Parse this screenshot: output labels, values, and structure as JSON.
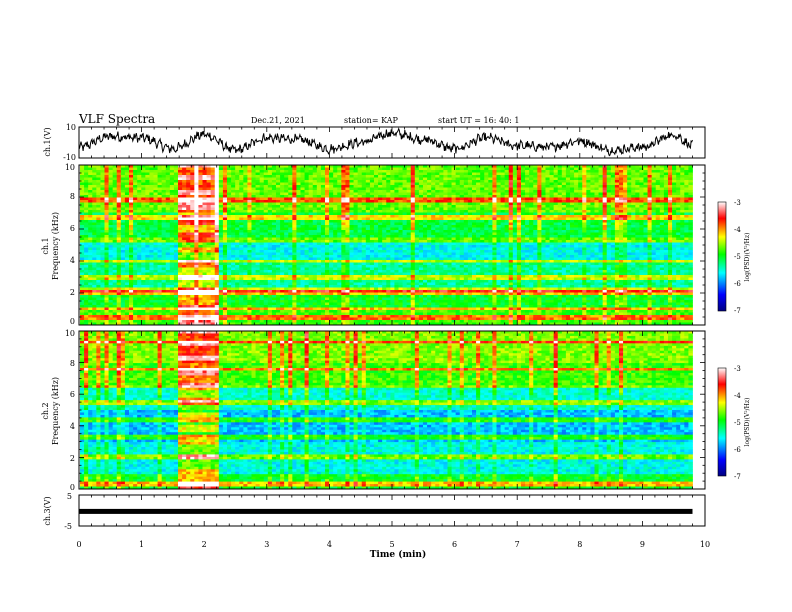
{
  "header": {
    "title": "VLF Spectra",
    "date": "Dec.21, 2021",
    "station": "station= KAP",
    "start_ut": "start  UT =   16: 40: 1"
  },
  "colorbar": {
    "label": "log(PSD)(V²/Hz)",
    "ticks": [
      "-3",
      "-4",
      "-5",
      "-6",
      "-7"
    ],
    "colors": [
      "#000080",
      "#0000ff",
      "#00ffff",
      "#00ff00",
      "#ffff00",
      "#ff0000",
      "#ffffff"
    ]
  },
  "chart_data": [
    {
      "type": "line",
      "panel": "ch1-waveform",
      "ylabel": "ch.1(V)",
      "ylim": [
        -10,
        10
      ],
      "yticks": [
        "10",
        "-10"
      ],
      "xlim": [
        0,
        10
      ],
      "trend_x": [
        0,
        0.5,
        1,
        1.5,
        2,
        2.5,
        3,
        3.5,
        4,
        4.5,
        5,
        5.5,
        6,
        6.5,
        7,
        7.5,
        8,
        8.5,
        9,
        9.5,
        9.8
      ],
      "trend_y": [
        -3,
        4,
        3,
        -4,
        5,
        -5,
        3,
        2,
        -4,
        0,
        6,
        2,
        -4,
        3,
        -2,
        -3,
        1,
        -5,
        -3,
        5,
        -2
      ]
    },
    {
      "type": "heatmap",
      "panel": "ch1-spectrogram",
      "ylabel": "ch.1\nFrequency (kHz)",
      "ylim": [
        0,
        10
      ],
      "yticks": [
        "0",
        "2",
        "4",
        "6",
        "8",
        "10"
      ],
      "xlim": [
        0,
        9.8
      ],
      "strong_band": {
        "x_start": 1.6,
        "x_end": 2.2
      },
      "bright_lines_khz": [
        0.5,
        1.0,
        2.0,
        2.2,
        3.0,
        4.0,
        5.3,
        6.7,
        7.8
      ]
    },
    {
      "type": "heatmap",
      "panel": "ch2-spectrogram",
      "ylabel": "ch.2\nFrequency (kHz)",
      "ylim": [
        0,
        10
      ],
      "yticks": [
        "0",
        "2",
        "4",
        "6",
        "8",
        "10"
      ],
      "xlim": [
        0,
        9.8
      ],
      "strong_band": {
        "x_start": 1.6,
        "x_end": 2.2
      },
      "bright_lines_khz": [
        0.3,
        2.0,
        3.3,
        4.4,
        5.5,
        6.5,
        7.6,
        9.3
      ]
    },
    {
      "type": "line",
      "panel": "ch3-waveform",
      "ylabel": "ch.3(V)",
      "ylim": [
        -5,
        5
      ],
      "yticks": [
        "5",
        "-5"
      ],
      "xlim": [
        0,
        10
      ],
      "level": -0.3
    }
  ],
  "xaxis": {
    "label": "Time (min)",
    "ticks": [
      "0",
      "1",
      "2",
      "3",
      "4",
      "5",
      "6",
      "7",
      "8",
      "9",
      "10"
    ]
  }
}
